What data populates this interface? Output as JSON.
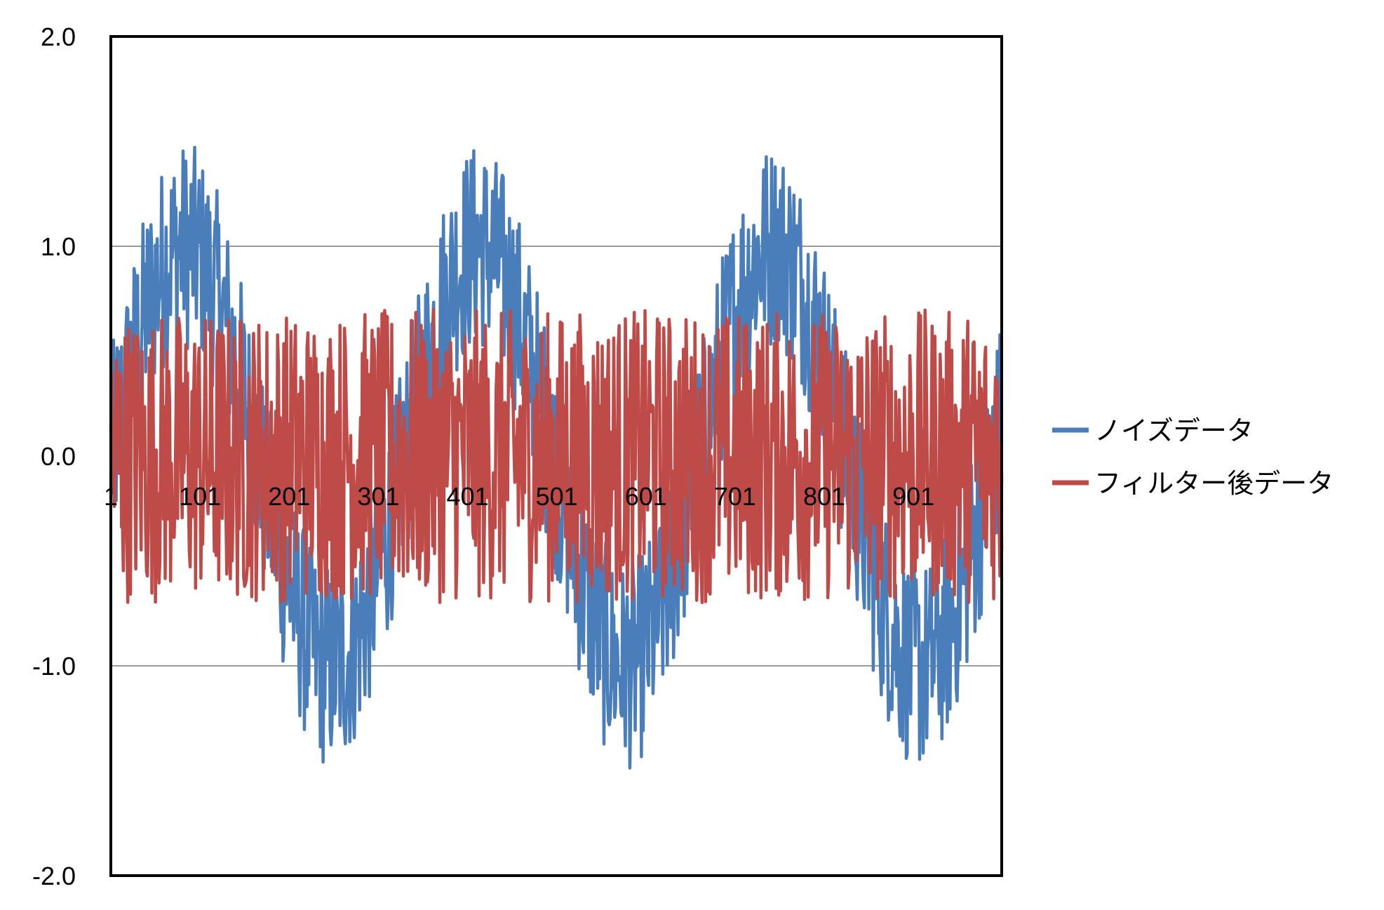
{
  "chart_data": {
    "type": "line",
    "title": "",
    "xlabel": "",
    "ylabel": "",
    "x_range": [
      1,
      1000
    ],
    "ylim": [
      -2.0,
      2.0
    ],
    "x_tick_labels": [
      "1",
      "101",
      "201",
      "301",
      "401",
      "501",
      "601",
      "701",
      "801",
      "901"
    ],
    "y_tick_labels": [
      "2.0",
      "1.0",
      "0.0",
      "-1.0",
      "-2.0"
    ],
    "y_tick_values": [
      2.0,
      1.0,
      0.0,
      -1.0,
      -2.0
    ],
    "grid": "horizontal",
    "legend_position": "right",
    "series": [
      {
        "name": "ノイズデータ",
        "color": "#4a7ebb",
        "description": "sine wave, amplitude ~1.0, period ~330 samples, plus noise ~±0.5",
        "sine_amplitude": 1.0,
        "period": 330,
        "noise_amplitude": 0.5
      },
      {
        "name": "フィルター後データ",
        "color": "#be4b48",
        "description": "zero-mean noise ~±0.7",
        "sine_amplitude": 0.0,
        "period": 330,
        "noise_amplitude": 0.7
      }
    ]
  }
}
